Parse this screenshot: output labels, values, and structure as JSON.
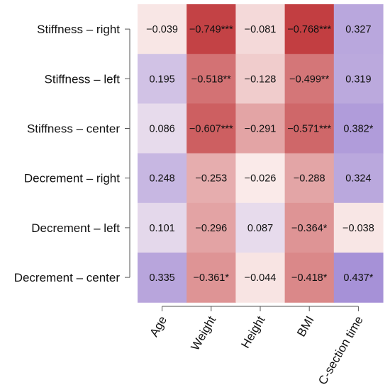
{
  "chart_data": {
    "type": "heatmap",
    "rows": [
      "Stiffness – right",
      "Stiffness – left",
      "Stiffness – center",
      "Decrement – right",
      "Decrement – left",
      "Decrement – center"
    ],
    "columns": [
      "Age",
      "Weight",
      "Height",
      "BMI",
      "C-section time"
    ],
    "values": [
      [
        -0.039,
        -0.749,
        -0.081,
        -0.768,
        0.327
      ],
      [
        0.195,
        -0.518,
        -0.128,
        -0.499,
        0.319
      ],
      [
        0.086,
        -0.607,
        -0.291,
        -0.571,
        0.382
      ],
      [
        0.248,
        -0.253,
        -0.026,
        -0.288,
        0.324
      ],
      [
        0.101,
        -0.296,
        0.087,
        -0.364,
        -0.038
      ],
      [
        0.335,
        -0.361,
        -0.044,
        -0.418,
        0.437
      ]
    ],
    "labels": [
      [
        "−0.039",
        "−0.749***",
        "−0.081",
        "−0.768***",
        "0.327"
      ],
      [
        "0.195",
        "−0.518**",
        "−0.128",
        "−0.499**",
        "0.319"
      ],
      [
        "0.086",
        "−0.607***",
        "−0.291",
        "−0.571***",
        "0.382*"
      ],
      [
        "0.248",
        "−0.253",
        "−0.026",
        "−0.288",
        "0.324"
      ],
      [
        "0.101",
        "−0.296",
        "0.087",
        "−0.364*",
        "−0.038"
      ],
      [
        "0.335",
        "−0.361*",
        "−0.044",
        "−0.418*",
        "0.437*"
      ]
    ],
    "color_scale": {
      "negative": "#c0383b",
      "zero": "#fdf4f3",
      "positive": "#a48fd6"
    },
    "legend": "none",
    "grid": false
  }
}
